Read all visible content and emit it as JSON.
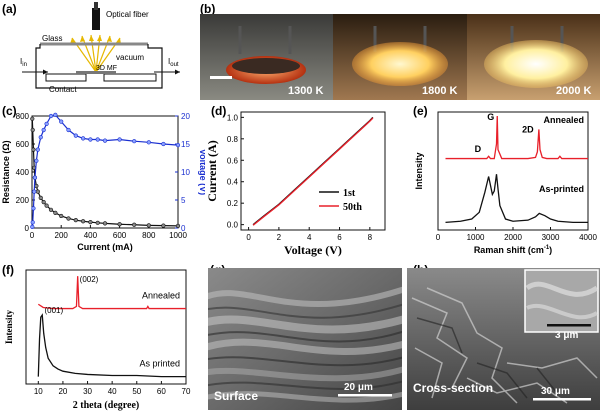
{
  "labels": {
    "a": "(a)",
    "b": "(b)",
    "c": "(c)",
    "d": "(d)",
    "e": "(e)",
    "f": "(f)",
    "g": "(g)",
    "h": "(h)"
  },
  "colors": {
    "red": "#e8202a",
    "blue": "#1a2fd0",
    "black": "#111111"
  },
  "panel_a": {
    "optical_fiber": "Optical fiber",
    "glass": "Glass",
    "vacuum": "vacuum",
    "iin": "I",
    "iin_sub": "in",
    "iout": "I",
    "iout_sub": "out",
    "mf": "3D MF",
    "contact": "Contact"
  },
  "panel_b": {
    "temps": [
      "1300 K",
      "1800 K",
      "2000 K"
    ]
  },
  "panel_g": {
    "caption": "Surface",
    "scale": "20 μm"
  },
  "panel_h": {
    "caption": "Cross-section",
    "scale": "30 μm",
    "inset_scale": "3 μm"
  },
  "chart_data": [
    {
      "id": "c",
      "type": "line",
      "xlabel": "Current (mA)",
      "ylabel": "Resistance (Ω)",
      "y2label": "Voltage (V)",
      "xlim": [
        0,
        1000
      ],
      "ylim": [
        0,
        800
      ],
      "y2lim": [
        0,
        20
      ],
      "xticks": [
        0,
        200,
        400,
        600,
        800,
        1000
      ],
      "yticks": [
        0,
        200,
        400,
        600,
        800
      ],
      "y2ticks": [
        0,
        5,
        10,
        15,
        20
      ],
      "series": [
        {
          "name": "Resistance",
          "color": "#111111",
          "axis": "left",
          "x": [
            2,
            5,
            10,
            15,
            20,
            30,
            40,
            60,
            80,
            100,
            130,
            160,
            200,
            250,
            300,
            350,
            400,
            450,
            500,
            600,
            700,
            800,
            900,
            1000
          ],
          "y": [
            780,
            700,
            560,
            430,
            360,
            300,
            260,
            215,
            185,
            160,
            130,
            108,
            86,
            68,
            56,
            48,
            42,
            37,
            33,
            27,
            23,
            19,
            17,
            15
          ]
        },
        {
          "name": "Voltage",
          "color": "#1a2fd0",
          "axis": "right",
          "x": [
            2,
            5,
            10,
            15,
            20,
            30,
            40,
            60,
            80,
            100,
            130,
            160,
            200,
            250,
            300,
            350,
            400,
            450,
            500,
            600,
            700,
            800,
            900,
            1000
          ],
          "y": [
            0.2,
            1.0,
            3.5,
            6.5,
            9,
            12,
            14,
            16.2,
            17.5,
            18.6,
            20,
            20.2,
            19,
            17.5,
            16.5,
            16,
            15.8,
            15.8,
            15.6,
            15.8,
            15.5,
            15.3,
            15.0,
            14.8
          ]
        }
      ]
    },
    {
      "id": "d",
      "type": "line",
      "xlabel": "Voltage (V)",
      "ylabel": "Current (A)",
      "xlim": [
        -0.5,
        9
      ],
      "ylim": [
        -0.05,
        1.05
      ],
      "xticks": [
        0,
        2,
        4,
        6,
        8
      ],
      "yticks": [
        0.0,
        0.2,
        0.4,
        0.6,
        0.8,
        1.0
      ],
      "series": [
        {
          "name": "1st",
          "color": "#111111",
          "x": [
            0.3,
            1,
            2,
            3,
            4,
            5,
            6,
            7,
            8,
            8.2
          ],
          "y": [
            0.0,
            0.08,
            0.19,
            0.32,
            0.45,
            0.58,
            0.71,
            0.84,
            0.97,
            1.0
          ]
        },
        {
          "name": "50th",
          "color": "#e8202a",
          "x": [
            0.3,
            1,
            2,
            3,
            4,
            5,
            6,
            7,
            8,
            8.2
          ],
          "y": [
            0.0,
            0.08,
            0.19,
            0.32,
            0.45,
            0.58,
            0.71,
            0.84,
            0.97,
            1.0
          ]
        }
      ]
    },
    {
      "id": "e",
      "type": "line",
      "xlabel": "Raman shift (cm",
      "xlabel_sup": "-1",
      "xlabel_end": ")",
      "ylabel": "Intensity",
      "xlim": [
        0,
        4000
      ],
      "xticks": [
        0,
        1000,
        2000,
        3000,
        4000
      ],
      "annotations": [
        "G",
        "2D",
        "D"
      ],
      "series": [
        {
          "name": "Annealed",
          "color": "#e8202a",
          "x": [
            200,
            1000,
            1300,
            1350,
            1400,
            1500,
            1560,
            1580,
            1600,
            1700,
            2400,
            2600,
            2650,
            2690,
            2720,
            2780,
            2900,
            3200,
            3250,
            3300,
            4000
          ],
          "y": [
            0.62,
            0.62,
            0.62,
            0.64,
            0.62,
            0.62,
            0.75,
            1.0,
            0.7,
            0.62,
            0.62,
            0.63,
            0.68,
            0.88,
            0.7,
            0.63,
            0.62,
            0.62,
            0.64,
            0.62,
            0.62
          ]
        },
        {
          "name": "As-printed",
          "color": "#111111",
          "x": [
            200,
            600,
            900,
            1100,
            1250,
            1350,
            1450,
            1500,
            1560,
            1600,
            1650,
            1800,
            2000,
            2400,
            2600,
            2700,
            2850,
            3000,
            3200,
            3600,
            4000
          ],
          "y": [
            0.05,
            0.06,
            0.08,
            0.14,
            0.32,
            0.46,
            0.3,
            0.33,
            0.48,
            0.35,
            0.2,
            0.08,
            0.06,
            0.07,
            0.1,
            0.13,
            0.11,
            0.08,
            0.06,
            0.05,
            0.05
          ]
        }
      ]
    },
    {
      "id": "f",
      "type": "line",
      "xlabel": "2 theta (degree)",
      "ylabel": "Intensity",
      "xlim": [
        5,
        70
      ],
      "xticks": [
        10,
        20,
        30,
        40,
        50,
        60,
        70
      ],
      "annotations": [
        "(002)",
        "(001)"
      ],
      "series": [
        {
          "name": "Annealed",
          "color": "#e8202a",
          "x": [
            10,
            12,
            16,
            20,
            24,
            25.5,
            26,
            26.5,
            28,
            35,
            45,
            54,
            54.5,
            55,
            60,
            70
          ],
          "y": [
            0.72,
            0.69,
            0.68,
            0.68,
            0.68,
            0.7,
            0.98,
            0.7,
            0.68,
            0.68,
            0.68,
            0.68,
            0.7,
            0.68,
            0.68,
            0.68
          ]
        },
        {
          "name": "As printed",
          "color": "#111111",
          "x": [
            10,
            10.5,
            11,
            11.6,
            12.2,
            13,
            14,
            16,
            18,
            20,
            25,
            30,
            40,
            50,
            60,
            70
          ],
          "y": [
            0.05,
            0.4,
            0.6,
            0.62,
            0.45,
            0.32,
            0.22,
            0.15,
            0.12,
            0.1,
            0.08,
            0.07,
            0.06,
            0.06,
            0.05,
            0.05
          ]
        }
      ]
    }
  ]
}
